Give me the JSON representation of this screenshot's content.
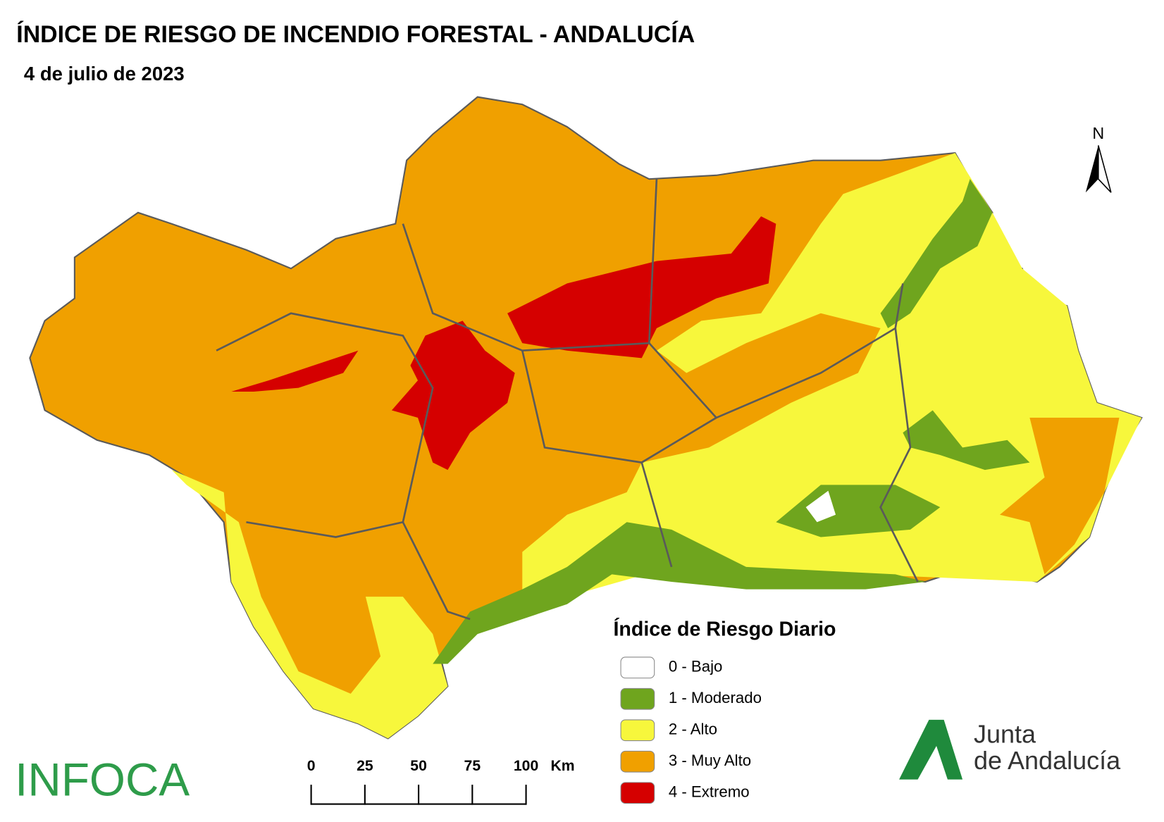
{
  "title": "ÍNDICE DE RIESGO DE INCENDIO FORESTAL - ANDALUCÍA",
  "subtitle": "4 de julio de 2023",
  "north": "N",
  "legend": {
    "title": "Índice de Riesgo Diario",
    "items": [
      {
        "label": "0 - Bajo",
        "color": "#ffffff"
      },
      {
        "label": "1 - Moderado",
        "color": "#6fa51e"
      },
      {
        "label": "2 - Alto",
        "color": "#f7f73c"
      },
      {
        "label": "3 - Muy Alto",
        "color": "#f0a000"
      },
      {
        "label": "4 - Extremo",
        "color": "#d50000"
      }
    ]
  },
  "scale_bar": {
    "ticks": [
      0,
      25,
      50,
      75,
      100
    ],
    "unit": "Km"
  },
  "logos": {
    "left": "INFOCA",
    "right_line1": "Junta",
    "right_line2": "de Andalucía"
  }
}
